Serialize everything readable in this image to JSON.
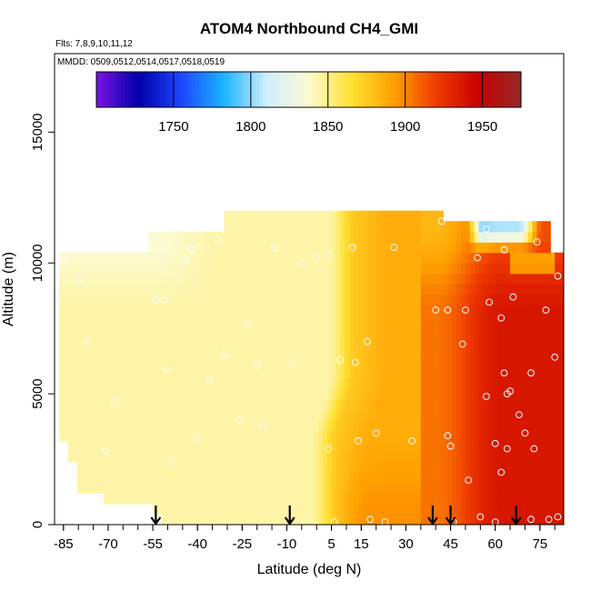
{
  "chart_data": {
    "type": "heatmap",
    "title": "ATOM4 Northbound CH4_GMI",
    "flights_note": "Flts: 7,8,9,10,11,12",
    "dates_note": "MMDD: 0509,0512,0514,0517,0518,0519",
    "xlabel": "Latitude (deg N)",
    "ylabel": "Altitude (m)",
    "xlim": [
      -88,
      83
    ],
    "ylim": [
      0,
      18000
    ],
    "x_ticks": [
      -85,
      -70,
      -55,
      -40,
      -25,
      -10,
      5,
      15,
      30,
      45,
      60,
      75
    ],
    "y_ticks": [
      0,
      5000,
      10000,
      15000
    ],
    "colorbar": {
      "range": [
        1700,
        1975
      ],
      "ticks": [
        1750,
        1800,
        1850,
        1900,
        1950
      ],
      "colors": [
        "#7a14e6",
        "#0000a8",
        "#1d46ff",
        "#19b4ff",
        "#cfeefd",
        "#fcfbd2",
        "#ffe233",
        "#ffa000",
        "#f03c00",
        "#c80000",
        "#952a2a"
      ]
    },
    "grid": false,
    "arrow_latitudes": [
      -54,
      -9,
      39,
      45,
      67
    ],
    "sample_points": [
      [
        -85,
        10100
      ],
      [
        -80,
        9300
      ],
      [
        -77,
        7000
      ],
      [
        -73,
        10600
      ],
      [
        -71,
        2800
      ],
      [
        -68,
        4700
      ],
      [
        -54,
        8600
      ],
      [
        -51,
        8600
      ],
      [
        -50,
        5900
      ],
      [
        -49,
        2400
      ],
      [
        -44,
        10100
      ],
      [
        -42,
        10500
      ],
      [
        -40,
        3300
      ],
      [
        -36,
        5500
      ],
      [
        -33,
        10900
      ],
      [
        -31,
        6500
      ],
      [
        -26,
        4000
      ],
      [
        -23,
        7700
      ],
      [
        -20,
        6100
      ],
      [
        -18,
        3800
      ],
      [
        -14,
        10600
      ],
      [
        -8,
        6200
      ],
      [
        -5,
        10000
      ],
      [
        0,
        10200
      ],
      [
        4,
        10300
      ],
      [
        4,
        2900
      ],
      [
        6,
        100
      ],
      [
        8,
        6300
      ],
      [
        12,
        10600
      ],
      [
        13,
        6200
      ],
      [
        14,
        3200
      ],
      [
        17,
        7000
      ],
      [
        18,
        200
      ],
      [
        20,
        3500
      ],
      [
        23,
        100
      ],
      [
        26,
        10600
      ],
      [
        32,
        3200
      ],
      [
        40,
        8200
      ],
      [
        42,
        11600
      ],
      [
        44,
        8200
      ],
      [
        44,
        3400
      ],
      [
        45,
        3000
      ],
      [
        46,
        100
      ],
      [
        49,
        6900
      ],
      [
        50,
        8200
      ],
      [
        51,
        1700
      ],
      [
        54,
        10200
      ],
      [
        57,
        11300
      ],
      [
        57,
        4900
      ],
      [
        58,
        8500
      ],
      [
        60,
        3100
      ],
      [
        62,
        7900
      ],
      [
        62,
        2000
      ],
      [
        63,
        10500
      ],
      [
        63,
        5800
      ],
      [
        64,
        5000
      ],
      [
        64,
        2900
      ],
      [
        65,
        5100
      ],
      [
        66,
        8700
      ],
      [
        68,
        4200
      ],
      [
        70,
        3500
      ],
      [
        72,
        5800
      ],
      [
        72,
        200
      ],
      [
        73,
        2900
      ],
      [
        74,
        10800
      ],
      [
        77,
        8200
      ],
      [
        78,
        200
      ],
      [
        80,
        6400
      ],
      [
        81,
        10800
      ],
      [
        81,
        9500
      ],
      [
        81,
        300
      ],
      [
        60,
        100
      ],
      [
        55,
        300
      ]
    ]
  }
}
